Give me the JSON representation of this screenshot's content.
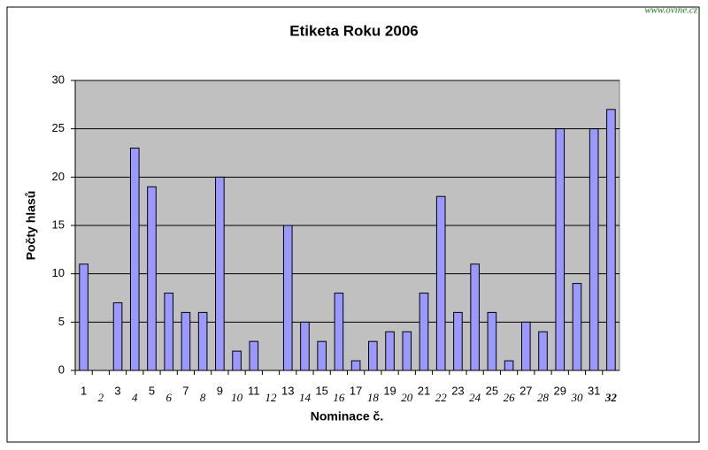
{
  "watermark": "www.ovine.cz",
  "chart_data": {
    "type": "bar",
    "title": "Etiketa Roku 2006",
    "x_label": "Nominace č.",
    "y_label": "Počty hlasů",
    "categories": [
      "1",
      "2",
      "3",
      "4",
      "5",
      "6",
      "7",
      "8",
      "9",
      "10",
      "11",
      "12",
      "13",
      "14",
      "15",
      "16",
      "17",
      "18",
      "19",
      "20",
      "21",
      "22",
      "23",
      "24",
      "25",
      "26",
      "27",
      "28",
      "29",
      "30",
      "31",
      "32"
    ],
    "values": [
      11,
      0,
      7,
      23,
      19,
      8,
      6,
      6,
      20,
      2,
      3,
      0,
      15,
      5,
      3,
      8,
      1,
      3,
      4,
      4,
      8,
      18,
      6,
      11,
      6,
      1,
      5,
      4,
      25,
      9,
      25,
      27
    ],
    "color": "#9999ff",
    "ylim": [
      0,
      30
    ],
    "yticks": [
      0,
      5,
      10,
      15,
      20,
      25,
      30
    ],
    "grid": true
  }
}
